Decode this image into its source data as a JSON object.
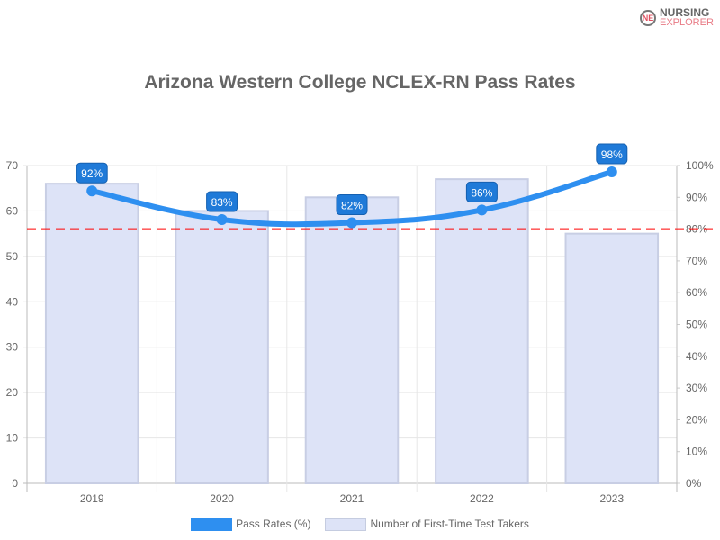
{
  "logo": {
    "line1": "NURSING",
    "line2": "EXPLORER"
  },
  "chart_data": {
    "type": "bar",
    "title": "Arizona Western College NCLEX-RN Pass Rates",
    "categories": [
      "2019",
      "2020",
      "2021",
      "2022",
      "2023"
    ],
    "series": [
      {
        "name": "Pass Rates (%)",
        "type": "line",
        "axis": "right",
        "values": [
          92,
          83,
          82,
          86,
          98
        ],
        "labels": [
          "92%",
          "83%",
          "82%",
          "86%",
          "98%"
        ],
        "color": "#2e8ff0"
      },
      {
        "name": "Number of First-Time Test Takers",
        "type": "bar",
        "axis": "left",
        "values": [
          66,
          60,
          63,
          67,
          55
        ],
        "color": "#dde3f7"
      }
    ],
    "left_axis": {
      "range": [
        0,
        70
      ],
      "ticks": [
        "0",
        "10",
        "20",
        "30",
        "40",
        "50",
        "60",
        "70"
      ]
    },
    "right_axis": {
      "range": [
        0,
        100
      ],
      "ticks": [
        "0%",
        "10%",
        "20%",
        "30%",
        "40%",
        "50%",
        "60%",
        "70%",
        "80%",
        "90%",
        "100%"
      ]
    },
    "reference_line": {
      "value": 80,
      "axis": "right",
      "color": "#ff0000",
      "style": "dashed"
    },
    "legend_position": "bottom"
  }
}
